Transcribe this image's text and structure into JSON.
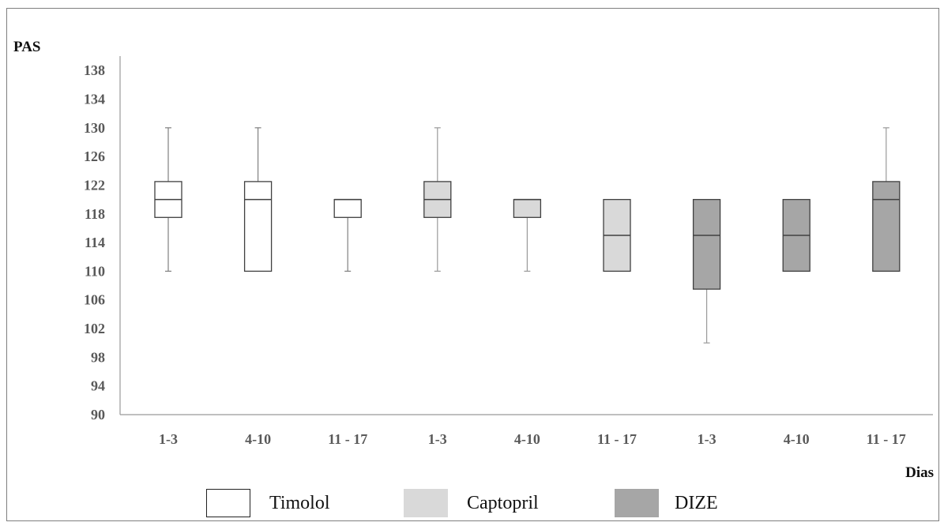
{
  "chart_data": {
    "type": "box",
    "ylabel": "PAS",
    "xlabel": "Dias",
    "ylim": [
      90,
      140
    ],
    "yticks": [
      90,
      94,
      98,
      102,
      106,
      110,
      114,
      118,
      122,
      126,
      130,
      134,
      138
    ],
    "categories": [
      "1-3",
      "4-10",
      "11 - 17",
      "1-3",
      "4-10",
      "11 - 17",
      "1-3",
      "4-10",
      "11 - 17"
    ],
    "boxes": [
      {
        "group": "Timolol",
        "category": "1-3",
        "min": 110,
        "q1": 117.5,
        "median": 120,
        "q3": 122.5,
        "max": 130
      },
      {
        "group": "Timolol",
        "category": "4-10",
        "min": 110,
        "q1": 110,
        "median": 120,
        "q3": 122.5,
        "max": 130
      },
      {
        "group": "Timolol",
        "category": "11 - 17",
        "min": 110,
        "q1": 117.5,
        "median": 120,
        "q3": 120,
        "max": 120
      },
      {
        "group": "Captopril",
        "category": "1-3",
        "min": 110,
        "q1": 117.5,
        "median": 120,
        "q3": 122.5,
        "max": 130
      },
      {
        "group": "Captopril",
        "category": "4-10",
        "min": 110,
        "q1": 117.5,
        "median": 120,
        "q3": 120,
        "max": 120
      },
      {
        "group": "Captopril",
        "category": "11 - 17",
        "min": 110,
        "q1": 110,
        "median": 115,
        "q3": 120,
        "max": 120
      },
      {
        "group": "DIZE",
        "category": "1-3",
        "min": 100,
        "q1": 107.5,
        "median": 115,
        "q3": 120,
        "max": 120
      },
      {
        "group": "DIZE",
        "category": "4-10",
        "min": 110,
        "q1": 110,
        "median": 115,
        "q3": 120,
        "max": 120
      },
      {
        "group": "DIZE",
        "category": "11 - 17",
        "min": 110,
        "q1": 110,
        "median": 120,
        "q3": 122.5,
        "max": 130
      }
    ],
    "groups": [
      {
        "name": "Timolol",
        "color": "#ffffff"
      },
      {
        "name": "Captopril",
        "color": "#d9d9d9"
      },
      {
        "name": "DIZE",
        "color": "#a6a6a6"
      }
    ],
    "legend_position": "bottom"
  }
}
